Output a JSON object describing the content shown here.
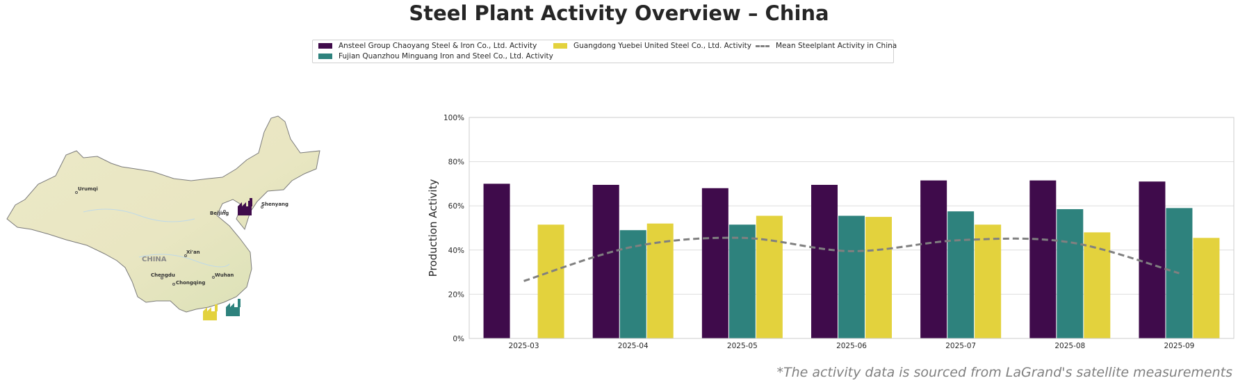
{
  "page": {
    "title": "Steel Plant Activity Overview – China",
    "footnote": "*The activity data is sourced from LaGrand's satellite measurements"
  },
  "map": {
    "labels": [
      "Urumqi",
      "Beijing",
      "Shenyang",
      "CHINA",
      "Xi'an",
      "Chengdu",
      "Chongqing",
      "Wuhan"
    ]
  },
  "chart_data": {
    "type": "bar",
    "categories": [
      "2025-03",
      "2025-04",
      "2025-05",
      "2025-06",
      "2025-07",
      "2025-08",
      "2025-09"
    ],
    "series": [
      {
        "name": "Ansteel Group Chaoyang Steel & Iron Co., Ltd. Activity",
        "color": "#3f0b4b",
        "values": [
          70,
          69.5,
          68,
          69.5,
          71.5,
          71.5,
          71
        ]
      },
      {
        "name": "Fujian Quanzhou Minguang Iron and Steel Co., Ltd. Activity",
        "color": "#2e827d",
        "values": [
          null,
          49,
          51.5,
          55.5,
          57.5,
          58.5,
          59
        ]
      },
      {
        "name": "Guangdong Yuebei United Steel Co., Ltd. Activity",
        "color": "#e3d23d",
        "values": [
          51.5,
          52,
          55.5,
          55,
          51.5,
          48,
          45.5
        ]
      }
    ],
    "mean_line": {
      "name": "Mean Steelplant Activity in China",
      "color": "#808080",
      "style": "dashed",
      "values": [
        26,
        41.5,
        45.5,
        39.5,
        44.5,
        43.5,
        29.5
      ]
    },
    "ylabel": "Production Activity",
    "ylim": [
      0,
      100
    ],
    "yticks": [
      0,
      20,
      40,
      60,
      80,
      100
    ],
    "ytick_labels": [
      "0%",
      "20%",
      "40%",
      "60%",
      "80%",
      "100%"
    ],
    "grid": true,
    "legend_position": "top-center"
  }
}
